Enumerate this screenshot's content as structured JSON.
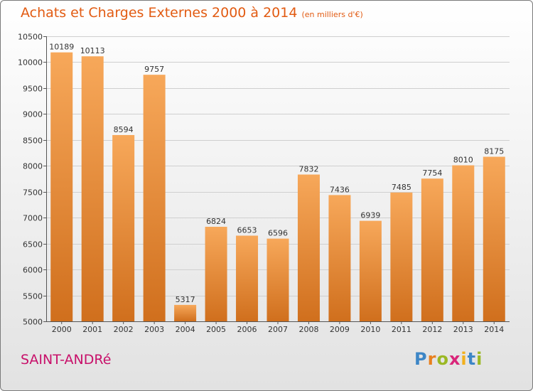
{
  "header": {
    "title": "Achats et Charges Externes 2000 à 2014",
    "unit": "(en milliers d'€)"
  },
  "footer": {
    "place": "SAINT-ANDRé",
    "brand": [
      "P",
      "r",
      "o",
      "x",
      "i",
      "t",
      "i"
    ],
    "brand_colors": [
      "#3d86c6",
      "#e8801f",
      "#9bb824",
      "#d9267a",
      "#f2b01d",
      "#3d86c6",
      "#9bb824"
    ]
  },
  "colors": {
    "bar_light": "#f7a85a",
    "bar_dark": "#d06f1d",
    "label": "#333333",
    "axis": "#555555",
    "grid": "#cfcfcf"
  },
  "chart_data": {
    "type": "bar",
    "title": "Achats et Charges Externes 2000 à 2014",
    "subtitle": "(en milliers d'€)",
    "xlabel": "",
    "ylabel": "",
    "categories": [
      "2000",
      "2001",
      "2002",
      "2003",
      "2004",
      "2005",
      "2006",
      "2007",
      "2008",
      "2009",
      "2010",
      "2011",
      "2012",
      "2013",
      "2014"
    ],
    "values": [
      10189,
      10113,
      8594,
      9757,
      5317,
      6824,
      6653,
      6596,
      7832,
      7436,
      6939,
      7485,
      7754,
      8010,
      8175
    ],
    "ylim": [
      5000,
      10500
    ],
    "yticks": [
      5000,
      5500,
      6000,
      6500,
      7000,
      7500,
      8000,
      8500,
      9000,
      9500,
      10000,
      10500
    ],
    "grid": true,
    "legend": "none"
  }
}
